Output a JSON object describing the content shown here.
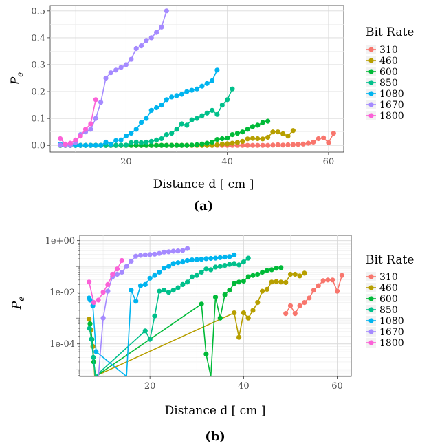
{
  "figure": {
    "panels": [
      {
        "caption": "(a)",
        "xlabel": "Distance d [ cm ]",
        "ylabel": "Pe",
        "ylabel_main": "P",
        "ylabel_sub": "e",
        "legend_title": "Bit Rate"
      },
      {
        "caption": "(b)",
        "xlabel": "Distance d [ cm ]",
        "ylabel": "Pe",
        "ylabel_main": "P",
        "ylabel_sub": "e",
        "legend_title": "Bit Rate"
      }
    ]
  },
  "chart_data": [
    {
      "type": "line",
      "caption": "(a)",
      "xlabel": "Distance d [ cm ]",
      "ylabel": "Pe",
      "xlim": [
        5,
        63
      ],
      "ylim": [
        -0.025,
        0.52
      ],
      "xticks": [
        20,
        40,
        60
      ],
      "xtick_labels": [
        "20",
        "40",
        "60"
      ],
      "yticks": [
        0,
        0.1,
        0.2,
        0.3,
        0.4,
        0.5
      ],
      "ytick_labels": [
        "0.0",
        "0.1",
        "0.2",
        "0.3",
        "0.4",
        "0.5"
      ],
      "grid": true,
      "legend": {
        "title": "Bit Rate",
        "position": "right"
      },
      "series": [
        {
          "name": "310",
          "color": "#F8766D",
          "x": [
            7,
            8,
            9,
            10,
            11,
            12,
            13,
            14,
            15,
            16,
            17,
            18,
            19,
            20,
            21,
            22,
            23,
            24,
            25,
            26,
            27,
            28,
            29,
            30,
            31,
            32,
            33,
            34,
            35,
            36,
            37,
            38,
            39,
            40,
            41,
            42,
            43,
            44,
            45,
            46,
            47,
            48,
            49,
            50,
            51,
            52,
            53,
            54,
            55,
            56,
            57,
            58,
            59,
            60,
            61
          ],
          "y": [
            0,
            0,
            0,
            0,
            0,
            0,
            0,
            0,
            0,
            0,
            0,
            0,
            0,
            0,
            0,
            0,
            0,
            0,
            0,
            0,
            0,
            0,
            0,
            0,
            0,
            0,
            0,
            0,
            0,
            0,
            0,
            0,
            0,
            0,
            0,
            0,
            0,
            0,
            0,
            0,
            0,
            0,
            0.001,
            0.002,
            0.001,
            0.002,
            0.003,
            0.004,
            0.005,
            0.008,
            0.012,
            0.025,
            0.028,
            0.01,
            0.045
          ]
        },
        {
          "name": "460",
          "color": "#B79F00",
          "x": [
            7,
            8,
            9,
            10,
            11,
            12,
            13,
            14,
            15,
            16,
            17,
            18,
            19,
            20,
            21,
            22,
            23,
            24,
            25,
            26,
            27,
            28,
            29,
            30,
            31,
            32,
            33,
            34,
            35,
            36,
            37,
            38,
            39,
            40,
            41,
            42,
            43,
            44,
            45,
            46,
            47,
            48,
            49,
            50,
            51,
            52,
            53
          ],
          "y": [
            0,
            0,
            0,
            0,
            0,
            0,
            0,
            0,
            0,
            0,
            0,
            0,
            0,
            0,
            0,
            0,
            0,
            0,
            0,
            0,
            0,
            0,
            0,
            0,
            0,
            0,
            0,
            0,
            0,
            0,
            0,
            0.002,
            0.005,
            0.006,
            0.008,
            0.011,
            0.015,
            0.024,
            0.026,
            0.025,
            0.024,
            0.03,
            0.05,
            0.05,
            0.043,
            0.035,
            0.055
          ]
        },
        {
          "name": "600",
          "color": "#00BA38",
          "x": [
            7,
            8,
            9,
            10,
            11,
            12,
            13,
            14,
            15,
            16,
            17,
            18,
            19,
            20,
            21,
            22,
            23,
            24,
            25,
            26,
            27,
            28,
            29,
            30,
            31,
            32,
            33,
            34,
            35,
            36,
            37,
            38,
            39,
            40,
            41,
            42,
            43,
            44,
            45,
            46,
            47,
            48
          ],
          "y": [
            0,
            0,
            0,
            0,
            0,
            0,
            0,
            0,
            0,
            0,
            0,
            0,
            0,
            0,
            0,
            0,
            0,
            0,
            0,
            0,
            0,
            0,
            0,
            0,
            0,
            0,
            0.001,
            0.002,
            0.005,
            0.008,
            0.012,
            0.022,
            0.025,
            0.027,
            0.04,
            0.045,
            0.05,
            0.06,
            0.07,
            0.075,
            0.085,
            0.09
          ]
        },
        {
          "name": "850",
          "color": "#00C08B",
          "x": [
            7,
            8,
            9,
            10,
            11,
            12,
            13,
            14,
            15,
            16,
            17,
            18,
            19,
            20,
            21,
            22,
            23,
            24,
            25,
            26,
            27,
            28,
            29,
            30,
            31,
            32,
            33,
            34,
            35,
            36,
            37,
            38,
            39,
            40,
            41
          ],
          "y": [
            0,
            0,
            0,
            0,
            0,
            0,
            0,
            0,
            0,
            0,
            0,
            0,
            0.001,
            0.001,
            0.01,
            0.012,
            0.01,
            0.012,
            0.015,
            0.02,
            0.025,
            0.04,
            0.045,
            0.06,
            0.08,
            0.075,
            0.095,
            0.1,
            0.11,
            0.12,
            0.13,
            0.115,
            0.15,
            0.17,
            0.21
          ]
        },
        {
          "name": "1080",
          "color": "#00B4EF",
          "x": [
            7,
            8,
            9,
            10,
            11,
            12,
            13,
            14,
            15,
            16,
            17,
            18,
            19,
            20,
            21,
            22,
            23,
            24,
            25,
            26,
            27,
            28,
            29,
            30,
            31,
            32,
            33,
            34,
            35,
            36,
            37,
            38
          ],
          "y": [
            0.005,
            0.003,
            0,
            0,
            0,
            0,
            0,
            0,
            0,
            0.012,
            0.005,
            0.018,
            0.02,
            0.035,
            0.045,
            0.06,
            0.085,
            0.1,
            0.13,
            0.14,
            0.15,
            0.17,
            0.18,
            0.185,
            0.19,
            0.2,
            0.205,
            0.21,
            0.22,
            0.23,
            0.24,
            0.28
          ]
        },
        {
          "name": "1670",
          "color": "#A58AFF",
          "x": [
            7,
            8,
            9,
            10,
            11,
            12,
            13,
            14,
            15,
            16,
            17,
            18,
            19,
            20,
            21,
            22,
            23,
            24,
            25,
            26,
            27,
            28
          ],
          "y": [
            0.001,
            0,
            0,
            0.011,
            0.04,
            0.05,
            0.06,
            0.1,
            0.16,
            0.25,
            0.27,
            0.28,
            0.29,
            0.3,
            0.32,
            0.36,
            0.37,
            0.39,
            0.4,
            0.42,
            0.44,
            0.5
          ]
        },
        {
          "name": "1800",
          "color": "#FB61D7",
          "x": [
            7,
            8,
            9,
            10,
            11,
            12,
            13,
            14
          ],
          "y": [
            0.025,
            0.005,
            0.008,
            0.02,
            0.035,
            0.06,
            0.08,
            0.17
          ]
        }
      ]
    },
    {
      "type": "line",
      "caption": "(b)",
      "xlabel": "Distance d [ cm ]",
      "ylabel": "Pe",
      "yscale": "log",
      "xlim": [
        5,
        63
      ],
      "ylim": [
        5.5e-06,
        1.6
      ],
      "xticks": [
        20,
        40,
        60
      ],
      "xtick_labels": [
        "20",
        "40",
        "60"
      ],
      "yticks": [
        1,
        0.01,
        0.0001
      ],
      "ytick_labels": [
        "1e+00",
        "1e-02",
        "1e-04"
      ],
      "grid": true,
      "legend": {
        "title": "Bit Rate",
        "position": "right"
      },
      "series": [
        {
          "name": "310",
          "color": "#F8766D",
          "x": [
            49,
            50,
            51,
            52,
            53,
            54,
            55,
            56,
            57,
            58,
            59,
            60,
            61
          ],
          "y": [
            0.0015,
            0.003,
            0.0015,
            0.003,
            0.004,
            0.006,
            0.012,
            0.018,
            0.028,
            0.03,
            0.03,
            0.011,
            0.045
          ]
        },
        {
          "name": "460",
          "color": "#B79F00",
          "x": [
            7,
            7.4,
            7.8,
            8.2,
            38,
            39,
            40,
            41,
            42,
            43,
            44,
            45,
            46,
            47,
            48,
            49,
            50,
            51,
            52,
            53
          ],
          "y": [
            0.0009,
            0.00035,
            8e-05,
            3e-06,
            0.0016,
            0.00018,
            0.0016,
            0.001,
            0.002,
            0.004,
            0.011,
            0.013,
            0.025,
            0.026,
            0.025,
            0.024,
            0.05,
            0.05,
            0.043,
            0.055
          ]
        },
        {
          "name": "600",
          "color": "#00BA38",
          "x": [
            7.2,
            7.6,
            8,
            8.4,
            31,
            32,
            33,
            34,
            35,
            36,
            37,
            38,
            39,
            40,
            41,
            42,
            43,
            44,
            45,
            46,
            47,
            48
          ],
          "y": [
            0.0006,
            0.00015,
            2e-05,
            3e-06,
            0.0035,
            4e-05,
            3e-06,
            0.0065,
            0.001,
            0.008,
            0.012,
            0.022,
            0.025,
            0.027,
            0.04,
            0.045,
            0.05,
            0.06,
            0.07,
            0.075,
            0.085,
            0.09
          ]
        },
        {
          "name": "850",
          "color": "#00C08B",
          "x": [
            7.1,
            7.5,
            7.9,
            8.3,
            19,
            20,
            21,
            22,
            23,
            24,
            25,
            26,
            27,
            28,
            29,
            30,
            31,
            32,
            33,
            34,
            35,
            36,
            37,
            38,
            39,
            40,
            41
          ],
          "y": [
            0.0004,
            0.00015,
            3e-05,
            3e-06,
            0.00032,
            0.00015,
            0.0012,
            0.011,
            0.012,
            0.01,
            0.012,
            0.015,
            0.02,
            0.025,
            0.04,
            0.045,
            0.06,
            0.08,
            0.075,
            0.095,
            0.1,
            0.11,
            0.12,
            0.13,
            0.115,
            0.15,
            0.21
          ]
        },
        {
          "name": "1080",
          "color": "#00B4EF",
          "x": [
            7,
            7.2,
            7.8,
            8.5,
            15,
            16,
            17,
            18,
            19,
            20,
            21,
            22,
            23,
            24,
            25,
            26,
            27,
            28,
            29,
            30,
            31,
            32,
            33,
            34,
            35,
            36,
            37,
            38
          ],
          "y": [
            0.006,
            0.005,
            0.003,
            5e-05,
            3e-06,
            0.012,
            0.0045,
            0.018,
            0.02,
            0.035,
            0.045,
            0.06,
            0.085,
            0.1,
            0.13,
            0.14,
            0.15,
            0.17,
            0.18,
            0.185,
            0.19,
            0.2,
            0.205,
            0.21,
            0.22,
            0.23,
            0.24,
            0.28
          ]
        },
        {
          "name": "1670",
          "color": "#A58AFF",
          "x": [
            9,
            10,
            11,
            12,
            13,
            14,
            15,
            16,
            17,
            18,
            19,
            20,
            21,
            22,
            23,
            24,
            25,
            26,
            27,
            28
          ],
          "y": [
            3e-06,
            0.001,
            0.011,
            0.04,
            0.05,
            0.06,
            0.1,
            0.16,
            0.25,
            0.27,
            0.28,
            0.29,
            0.3,
            0.32,
            0.36,
            0.37,
            0.39,
            0.4,
            0.42,
            0.5
          ]
        },
        {
          "name": "1800",
          "color": "#FB61D7",
          "x": [
            7,
            8,
            9,
            10,
            11,
            12,
            13,
            14
          ],
          "y": [
            0.025,
            0.004,
            0.005,
            0.01,
            0.02,
            0.05,
            0.08,
            0.17
          ]
        }
      ]
    }
  ]
}
